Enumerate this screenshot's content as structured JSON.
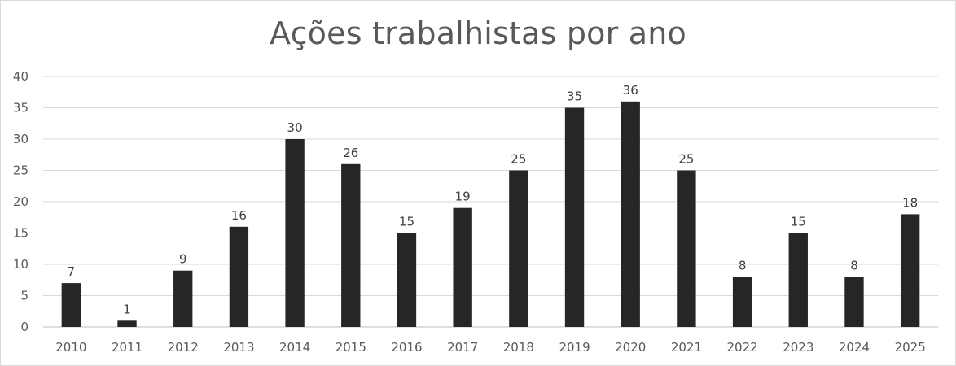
{
  "chart_data": {
    "type": "bar",
    "title": "Ações trabalhistas por ano",
    "xlabel": "",
    "ylabel": "",
    "categories": [
      "2010",
      "2011",
      "2012",
      "2013",
      "2014",
      "2015",
      "2016",
      "2017",
      "2018",
      "2019",
      "2020",
      "2021",
      "2022",
      "2023",
      "2024",
      "2025"
    ],
    "values": [
      7,
      1,
      9,
      16,
      30,
      26,
      15,
      19,
      25,
      35,
      36,
      25,
      8,
      15,
      8,
      18
    ],
    "ylim": [
      0,
      40
    ],
    "yticks": [
      "0",
      "5",
      "10",
      "15",
      "20",
      "25",
      "30",
      "35",
      "40"
    ],
    "grid": true,
    "legend": "none",
    "data_labels": true,
    "colors": {
      "bar": "#262626",
      "grid": "#d9d9d9",
      "axis": "#bfbfbf"
    }
  }
}
